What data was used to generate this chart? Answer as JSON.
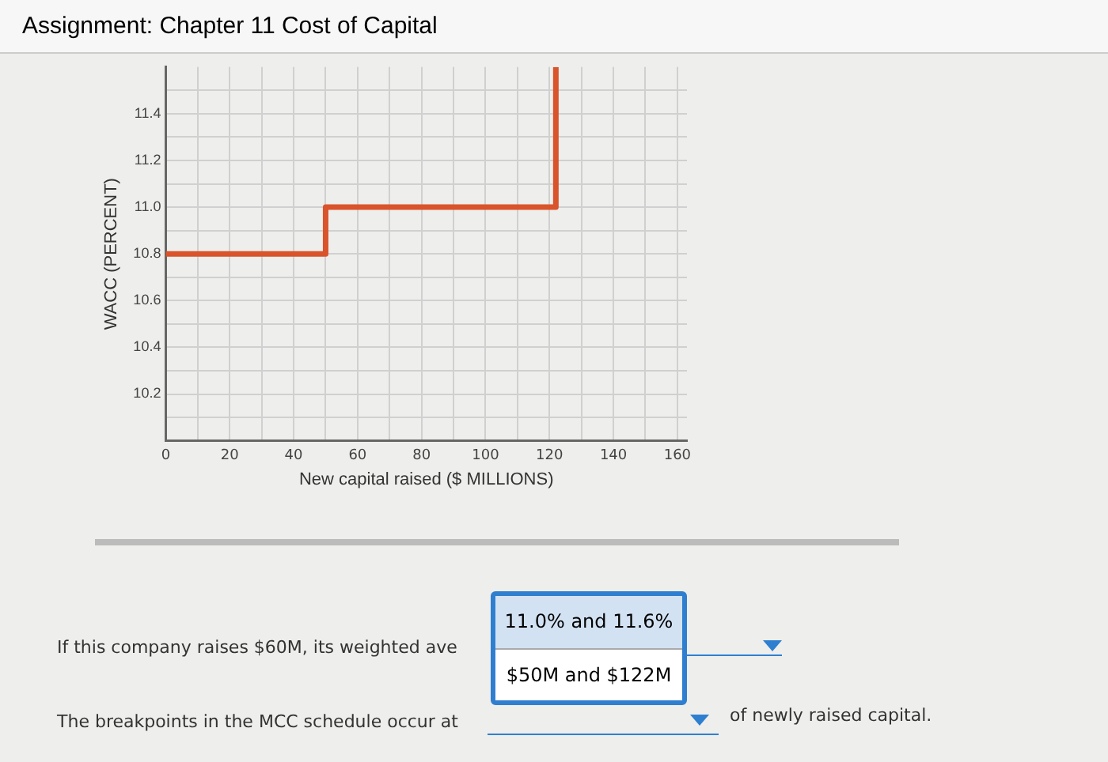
{
  "chart_data": {
    "type": "line",
    "title": "Assignment: Chapter 11 Cost of Capital",
    "xlabel": "New capital raised ($ MILLIONS)",
    "ylabel": "WACC (PERCENT)",
    "series": [
      {
        "color": "#d9532b",
        "x": [
          0,
          50,
          50,
          122,
          122
        ],
        "values": [
          10.8,
          10.8,
          11.0,
          11.0,
          11.6
        ]
      }
    ],
    "xlim": [
      0,
      163
    ],
    "ylim": [
      10.0,
      11.6
    ],
    "xticks": [
      0,
      {
        "value": 10,
        "label": null
      },
      20,
      {
        "value": 30,
        "label": null
      },
      40,
      {
        "value": 50,
        "label": null
      },
      60,
      {
        "value": 70,
        "label": null
      },
      80,
      {
        "value": 90,
        "label": null
      },
      100,
      {
        "value": 110,
        "label": null
      },
      120,
      {
        "value": 130,
        "label": null
      },
      140,
      {
        "value": 150,
        "label": null
      },
      160
    ],
    "yticks": [
      {
        "value": 10.1,
        "label": null
      },
      10.2,
      {
        "value": 10.3,
        "label": null
      },
      10.4,
      {
        "value": 10.5,
        "label": null
      },
      10.6,
      {
        "value": 10.7,
        "label": null
      },
      10.8,
      {
        "value": 10.9,
        "label": null
      },
      {
        "value": 11.0,
        "label": "11.0"
      },
      {
        "value": 11.1,
        "label": null
      },
      11.2,
      {
        "value": 11.3,
        "label": null
      },
      11.4,
      {
        "value": 11.5,
        "label": null
      }
    ],
    "grid": true,
    "legend": false,
    "marker": "none",
    "line_style": "solid",
    "annotations": [
      "If this company raises $60M, its weighted ave",
      "11.0% and 11.6%",
      "$50M and $122M",
      "The breakpoints in the MCC schedule occur at",
      "of newly raised capital."
    ]
  }
}
